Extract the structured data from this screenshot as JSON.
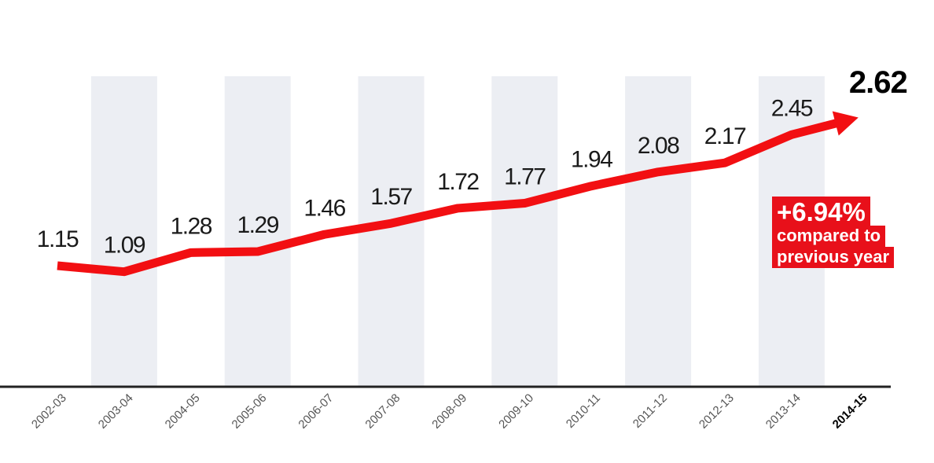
{
  "chart_data": {
    "type": "line",
    "categories": [
      "2002-03",
      "2003-04",
      "2004-05",
      "2005-06",
      "2006-07",
      "2007-08",
      "2008-09",
      "2009-10",
      "2010-11",
      "2011-12",
      "2012-13",
      "2013-14",
      "2014-15"
    ],
    "values": [
      1.15,
      1.09,
      1.28,
      1.29,
      1.46,
      1.57,
      1.72,
      1.77,
      1.94,
      2.08,
      2.17,
      2.45,
      2.62
    ],
    "data_labels": [
      "1.15",
      "1.09",
      "1.28",
      "1.29",
      "1.46",
      "1.57",
      "1.72",
      "1.77",
      "1.94",
      "2.08",
      "2.17",
      "2.45",
      "2.62"
    ],
    "title": "",
    "xlabel": "",
    "ylabel": "",
    "ylim": [
      0,
      3
    ],
    "grid": false,
    "highlight_category": "2014-15",
    "annotation": {
      "value": "+6.94%",
      "line1": "compared to",
      "line2": "previous year"
    },
    "colors": {
      "line": "#f20f12",
      "band": "#eceef3",
      "axis": "#222222",
      "callout_bg": "#e8101a",
      "text": "#1a1a1a",
      "tick": "#555555"
    }
  }
}
